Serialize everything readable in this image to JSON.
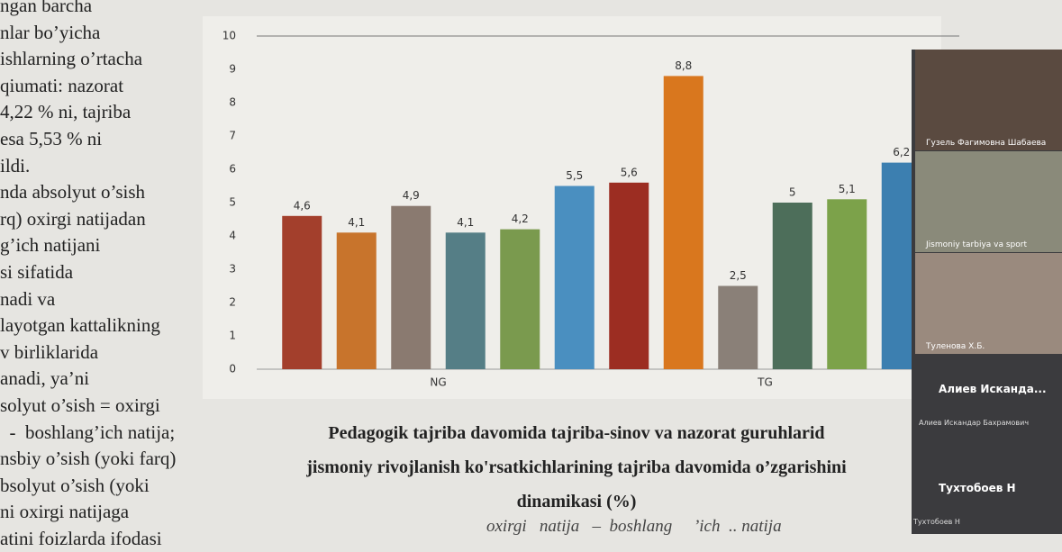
{
  "left_text": [
    "ngan barcha",
    "nlar bo’yicha",
    "ishlarning o’rtacha",
    "qiumati: nazorat",
    "4,22 % ni, tajriba",
    "esa 5,53 % ni",
    "ildi.",
    "nda absolyut o’sish",
    "rq) oxirgi natijadan",
    "g’ich natijani",
    "si sifatida",
    "nadi va",
    "layotgan kattalikning",
    "v birliklarida",
    "anadi, ya’ni",
    "solyut o’sish = oxirgi",
    "  -  boshlang’ich natija;",
    "nsbiy o’sish (yoki farq)",
    "bsolyut o’sish (yoki",
    "ni oxirgi natijaga",
    "atini foizlarda ifodasi"
  ],
  "chart_data": {
    "type": "bar",
    "categories": [
      null,
      null,
      null,
      "NG",
      null,
      null,
      null,
      null,
      null,
      "TG",
      null,
      null
    ],
    "values": [
      4.6,
      4.1,
      4.9,
      4.1,
      4.2,
      5.5,
      5.6,
      8.8,
      2.5,
      5,
      5.1,
      6.2
    ],
    "value_labels": [
      "4,6",
      "4,1",
      "4,9",
      "4,1",
      "4,2",
      "5,5",
      "5,6",
      "8,8",
      "2,5",
      "5",
      "5,1",
      "6,2"
    ],
    "colors": [
      "#a33f2c",
      "#c8742c",
      "#8a7a70",
      "#557e86",
      "#7a9a4e",
      "#4a8fc0",
      "#9c2d22",
      "#d9771e",
      "#8a8078",
      "#4d6e5a",
      "#7ca24a",
      "#3c7fb0"
    ],
    "ylim": [
      0,
      10
    ],
    "yticks": [
      0,
      1,
      2,
      3,
      4,
      5,
      6,
      7,
      8,
      9,
      10
    ]
  },
  "caption": [
    "Pedagogik tajriba davomida tajriba-sinov va nazorat guruhlarid",
    "jismoniy rivojlanish ko'rsatkichlarining tajriba davomida o’zgarishini",
    "dinamikasi (%)"
  ],
  "formula": "oxirgi   natija   –  boshlang     ’ich  .. natija",
  "participants": [
    {
      "label": "Гузель Фагимовна Шабаева"
    },
    {
      "label": "Jismoniy tarbiya va sport"
    },
    {
      "label": "Туленова Х.Б."
    },
    {
      "name": "Алиев Исканда...",
      "label": "Алиев Искандар Бахрамович"
    },
    {
      "name": "Тухтобоев Н",
      "label": "Тухтобоев Н"
    }
  ]
}
